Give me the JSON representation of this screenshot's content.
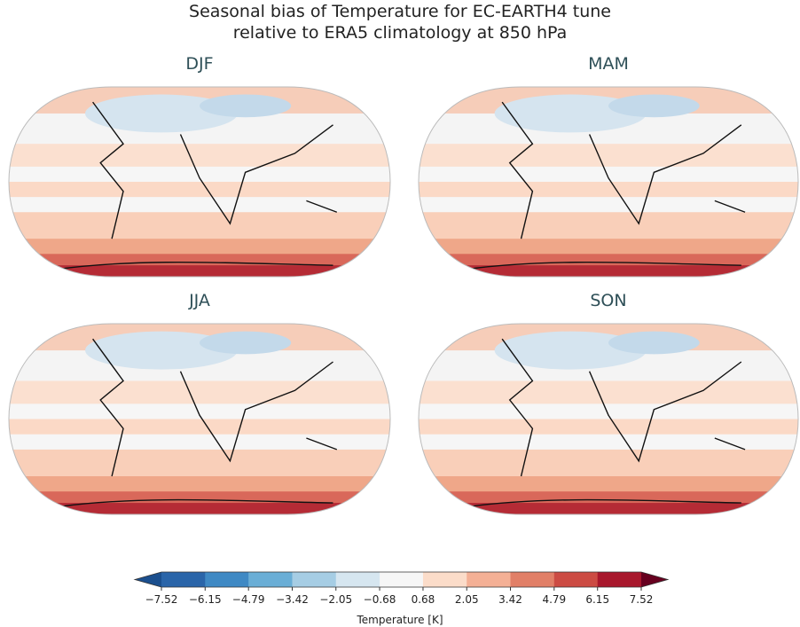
{
  "title": [
    "Seasonal bias of Temperature for EC-EARTH4 tune",
    "relative to ERA5 climatology at 850 hPa"
  ],
  "panels": [
    {
      "title": "DJF"
    },
    {
      "title": "MAM"
    },
    {
      "title": "JJA"
    },
    {
      "title": "SON"
    }
  ],
  "colorbar": {
    "label": "Temperature [K]",
    "ticks": [
      {
        "value": -7.52,
        "label": "−7.52"
      },
      {
        "value": -6.15,
        "label": "−6.15"
      },
      {
        "value": -4.79,
        "label": "−4.79"
      },
      {
        "value": -3.42,
        "label": "−3.42"
      },
      {
        "value": -2.05,
        "label": "−2.05"
      },
      {
        "value": -0.68,
        "label": "−0.68"
      },
      0.68,
      2.05,
      3.42,
      4.79,
      6.15,
      7.52
    ],
    "colors": [
      "#1b4f8e",
      "#2a65a9",
      "#3f89c4",
      "#6aaed6",
      "#a6cde4",
      "#d6e6f0",
      "#f6f6f6",
      "#fbdcc9",
      "#f4b095",
      "#e17f67",
      "#cc4b43",
      "#a8172c",
      "#67001f"
    ]
  }
}
